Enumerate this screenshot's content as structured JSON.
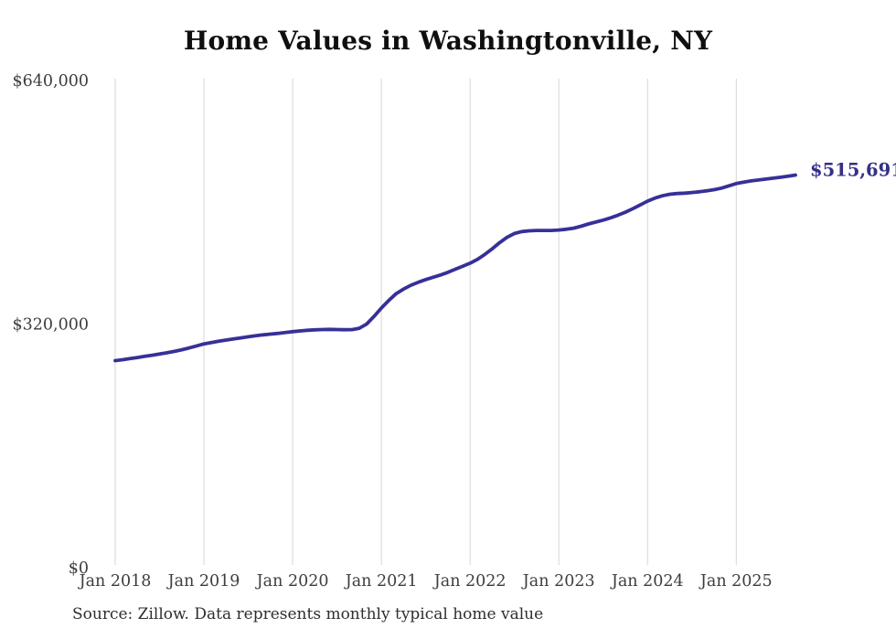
{
  "page": {
    "title": "Home Values in Washingtonville, NY",
    "source_note": "Source: Zillow. Data represents monthly typical home value"
  },
  "colors": {
    "line": "#363098",
    "end_label": "#343089",
    "grid": "#d6d6d6",
    "axis_text": "#3d3d3d",
    "title_text": "#0f0f0f",
    "source_text": "#2e2e2e",
    "background": "#ffffff"
  },
  "chart_data": {
    "type": "line",
    "title": "Home Values in Washingtonville, NY",
    "frequency": "monthly",
    "x_start": "2018-01",
    "x_end": "2025-09",
    "x_tick_labels": [
      "Jan 2018",
      "Jan 2019",
      "Jan 2020",
      "Jan 2021",
      "Jan 2022",
      "Jan 2023",
      "Jan 2024",
      "Jan 2025"
    ],
    "x_tick_month_indices": [
      0,
      12,
      24,
      36,
      48,
      60,
      72,
      84
    ],
    "y_ticks": [
      {
        "value": 0,
        "label": "$0"
      },
      {
        "value": 320000,
        "label": "$320,000"
      },
      {
        "value": 640000,
        "label": "$640,000"
      }
    ],
    "ylim": [
      0,
      640000
    ],
    "grid": "vertical-only",
    "legend": "none",
    "end_label": "$515,691",
    "end_value": 515691,
    "series": [
      {
        "name": "Monthly typical home value",
        "values": [
          272000,
          273200,
          274600,
          276100,
          277600,
          279100,
          280700,
          282300,
          284100,
          286200,
          288700,
          291300,
          294000,
          295800,
          297400,
          299000,
          300500,
          301900,
          303300,
          304600,
          305800,
          306800,
          307800,
          308900,
          310000,
          311000,
          311800,
          312400,
          312800,
          313000,
          312800,
          312500,
          312700,
          314500,
          320000,
          330000,
          341000,
          351000,
          360000,
          366000,
          371000,
          375000,
          378500,
          381500,
          384500,
          388000,
          392000,
          396000,
          400000,
          405000,
          411500,
          419000,
          427000,
          434000,
          439000,
          441500,
          442500,
          443000,
          443000,
          443000,
          443500,
          444500,
          446000,
          448500,
          451500,
          454000,
          456500,
          459500,
          463000,
          467000,
          471500,
          476500,
          481500,
          485500,
          488500,
          490500,
          491500,
          492000,
          492800,
          493800,
          495000,
          496500,
          498500,
          501500,
          504500,
          506500,
          508000,
          509200,
          510400,
          511600,
          512800,
          514200,
          515691
        ]
      }
    ],
    "source_note": "Source: Zillow. Data represents monthly typical home value"
  }
}
